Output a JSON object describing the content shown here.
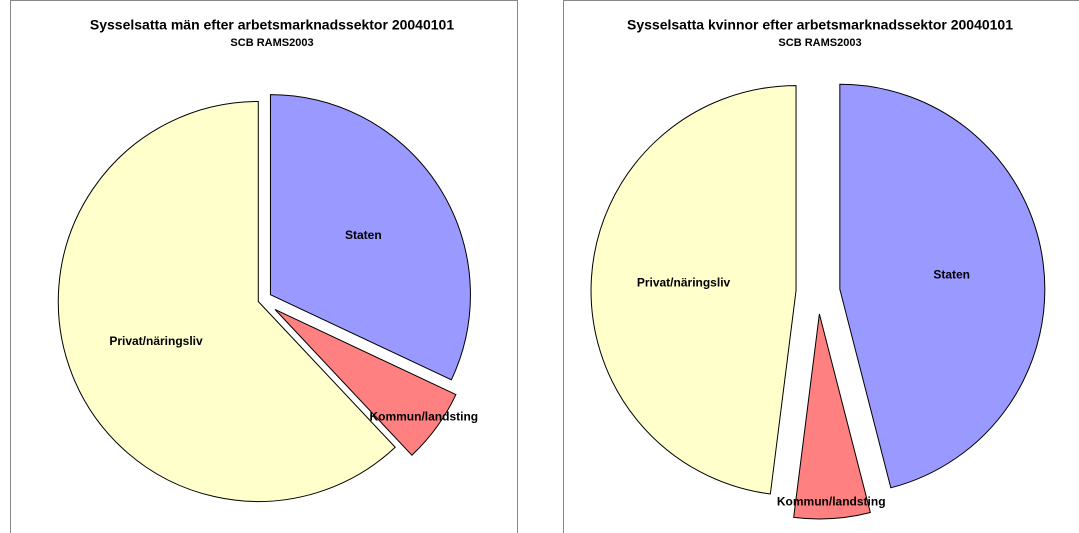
{
  "chart_data": [
    {
      "type": "pie",
      "title": "Sysselsatta män efter arbetsmarknadssektor 20040101",
      "subtitle": "SCB RAMS2003",
      "categories": [
        "Staten",
        "Kommun/landsting",
        "Privat/näringsliv"
      ],
      "values": [
        32,
        6,
        62
      ],
      "colors": [
        "#9999ff",
        "#ff8080",
        "#ffffcc"
      ]
    },
    {
      "type": "pie",
      "title": "Sysselsatta kvinnor efter arbetsmarknadssektor 20040101",
      "subtitle": "SCB RAMS2003",
      "categories": [
        "Staten",
        "Kommun/landsting",
        "Privat/näringsliv"
      ],
      "values": [
        46,
        6,
        48
      ],
      "colors": [
        "#9999ff",
        "#ff8080",
        "#ffffcc"
      ]
    }
  ]
}
